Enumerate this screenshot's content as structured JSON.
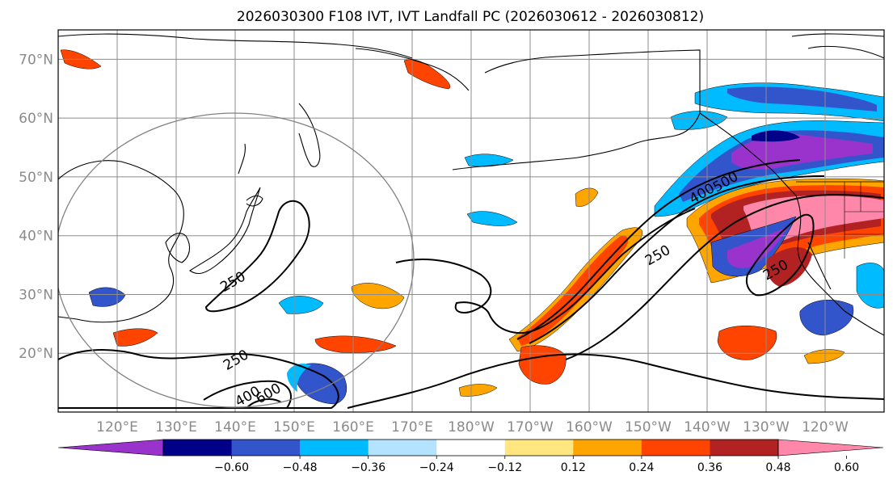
{
  "figure": {
    "title": "2026030300 F108 IVT, IVT Landfall PC (2026030612 - 2026030812)"
  },
  "map": {
    "extent": {
      "lon_west": 110,
      "lon_east": 250,
      "lat_south": 10,
      "lat_north": 75
    },
    "lat_ticks": [
      {
        "value": 70,
        "label": "70°N"
      },
      {
        "value": 60,
        "label": "60°N"
      },
      {
        "value": 50,
        "label": "50°N"
      },
      {
        "value": 40,
        "label": "40°N"
      },
      {
        "value": 30,
        "label": "30°N"
      },
      {
        "value": 20,
        "label": "20°N"
      }
    ],
    "lon_ticks": [
      {
        "value": 120,
        "label": "120°E"
      },
      {
        "value": 130,
        "label": "130°E"
      },
      {
        "value": 140,
        "label": "140°E"
      },
      {
        "value": 150,
        "label": "150°E"
      },
      {
        "value": 160,
        "label": "160°E"
      },
      {
        "value": 170,
        "label": "170°E"
      },
      {
        "value": 180,
        "label": "180°W"
      },
      {
        "value": 190,
        "label": "170°W"
      },
      {
        "value": 200,
        "label": "160°W"
      },
      {
        "value": 210,
        "label": "150°W"
      },
      {
        "value": 220,
        "label": "140°W"
      },
      {
        "value": 230,
        "label": "130°W"
      },
      {
        "value": 240,
        "label": "120°W"
      }
    ],
    "contour_labels": [
      {
        "text": "250",
        "lon": 140,
        "lat": 31.5
      },
      {
        "text": "250",
        "lon": 212,
        "lat": 36
      },
      {
        "text": "250",
        "lon": 140.5,
        "lat": 18.2
      },
      {
        "text": "400",
        "lon": 219.5,
        "lat": 46.5
      },
      {
        "text": "500",
        "lon": 223.5,
        "lat": 48.5
      },
      {
        "text": "250",
        "lon": 232,
        "lat": 33.5
      },
      {
        "text": "400",
        "lon": 142.5,
        "lat": 12
      },
      {
        "text": "600",
        "lon": 146,
        "lat": 12.5
      }
    ]
  },
  "colorbar": {
    "ticks": [
      "−0.60",
      "−0.48",
      "−0.36",
      "−0.24",
      "−0.12",
      "0.12",
      "0.24",
      "0.36",
      "0.48",
      "0.60"
    ],
    "bins": [
      {
        "label": "< -0.60",
        "color": "#9933cc"
      },
      {
        "label": "-0.60 to -0.48",
        "color": "#000088"
      },
      {
        "label": "-0.48 to -0.36",
        "color": "#3355cc"
      },
      {
        "label": "-0.36 to -0.24",
        "color": "#00bbff"
      },
      {
        "label": "-0.24 to -0.12",
        "color": "#b3e3ff"
      },
      {
        "label": "-0.12 to 0.12",
        "color": "#ffffff"
      },
      {
        "label": "0.12 to 0.24",
        "color": "#ffe680"
      },
      {
        "label": "0.24 to 0.36",
        "color": "#ffa500"
      },
      {
        "label": "0.36 to 0.48",
        "color": "#ff4400"
      },
      {
        "label": "0.48 to 0.60",
        "color": "#b22222"
      },
      {
        "label": "> 0.60",
        "color": "#ff88aa"
      }
    ]
  }
}
